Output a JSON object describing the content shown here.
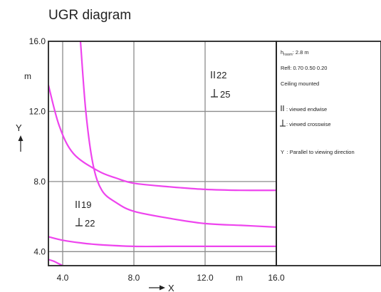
{
  "chart_data": {
    "type": "line",
    "title": "UGR diagram",
    "xlabel": "X",
    "ylabel": "Y",
    "x_unit": "m",
    "y_unit": "m",
    "xlim": [
      3.2,
      16.0
    ],
    "ylim": [
      3.2,
      16.0
    ],
    "x_ticks": [
      {
        "value": 4.0,
        "label": "4.0"
      },
      {
        "value": 8.0,
        "label": "8.0"
      },
      {
        "value": 12.0,
        "label": "12.0"
      },
      {
        "value": 16.0,
        "label": "16.0"
      }
    ],
    "y_ticks": [
      {
        "value": 16.0,
        "label": "16.0"
      },
      {
        "value": 12.0,
        "label": "12.0"
      },
      {
        "value": 8.0,
        "label": "8.0"
      },
      {
        "value": 4.0,
        "label": "4.0"
      }
    ],
    "grid": true,
    "series": [
      {
        "x": [
          5.0,
          5.3,
          5.7,
          6.2,
          7.0,
          8.0,
          10.0,
          12.0,
          14.0,
          16.0
        ],
        "y": [
          16.0,
          12.0,
          9.0,
          7.5,
          6.8,
          6.3,
          5.9,
          5.6,
          5.5,
          5.4
        ]
      },
      {
        "x": [
          3.2,
          3.8,
          4.6,
          6.0,
          7.0,
          8.0,
          10.0,
          12.0,
          14.0,
          16.0
        ],
        "y": [
          13.5,
          11.2,
          9.6,
          8.6,
          8.2,
          7.9,
          7.7,
          7.55,
          7.5,
          7.5
        ]
      },
      {
        "x": [
          3.2,
          4.0,
          5.0,
          6.0,
          8.0,
          10.0,
          12.0,
          14.0,
          16.0
        ],
        "y": [
          4.85,
          4.65,
          4.5,
          4.4,
          4.3,
          4.3,
          4.3,
          4.3,
          4.3
        ]
      },
      {
        "x": [
          3.2,
          3.5,
          3.8,
          4.0
        ],
        "y": [
          3.55,
          3.45,
          3.3,
          3.2
        ]
      }
    ],
    "annotations": [
      {
        "x": 13.0,
        "y": 14.0,
        "endwise": "22",
        "crosswise": "25"
      },
      {
        "x": 4.6,
        "y": 6.3,
        "endwise": "19",
        "crosswise": "22"
      }
    ]
  },
  "info_panel": {
    "room_symbol": "h",
    "room_subscript": "room",
    "room_value": ": 2.8 m",
    "refl": "Refl: 0.70 0.50 0.20",
    "mounting": "Ceiling mounted",
    "endwise_legend": ": viewed endwise",
    "crosswise_legend": ": viewed crosswise",
    "y_legend_symbol": "Y",
    "y_legend_text": ": Parallel to viewing direction"
  },
  "colors": {
    "curve": "#ee44ee",
    "grid": "#8c8c8c",
    "frame": "#222222"
  }
}
